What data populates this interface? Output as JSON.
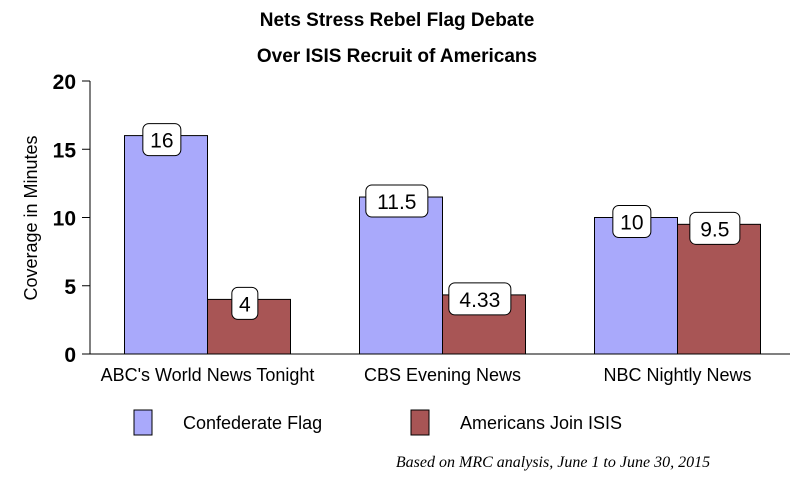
{
  "chart_data": {
    "type": "bar",
    "title": [
      "Nets Stress Rebel Flag Debate",
      "Over ISIS Recruit of Americans"
    ],
    "xlabel": "",
    "ylabel": "Coverage in Minutes",
    "ylim": [
      0,
      20
    ],
    "yticks": [
      0,
      5,
      10,
      15,
      20
    ],
    "categories": [
      "ABC's World News Tonight",
      "CBS Evening News",
      "NBC Nightly News"
    ],
    "series": [
      {
        "name": "Confederate Flag",
        "values": [
          16,
          11.5,
          10
        ],
        "labels": [
          "16",
          "11.5",
          "10"
        ],
        "color": "#a9a9fb"
      },
      {
        "name": "Americans Join ISIS",
        "values": [
          4,
          4.33,
          9.5
        ],
        "labels": [
          "4",
          "4.33",
          "9.5"
        ],
        "color": "#a85555"
      }
    ],
    "grid": false,
    "legend": "bottom",
    "note": "Based on MRC analysis, June 1 to June 30, 2015"
  }
}
